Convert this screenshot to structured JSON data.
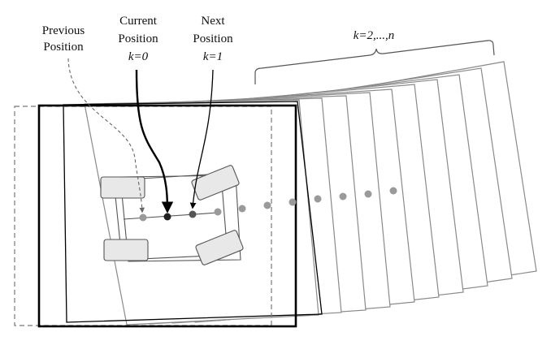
{
  "labels": {
    "previous": {
      "line1": "Previous",
      "line2": "Position"
    },
    "current": {
      "line1": "Current",
      "line2": "Position",
      "line3": "k=0"
    },
    "next": {
      "line1": "Next",
      "line2": "Position",
      "line3": "k=1"
    },
    "future": "k=2,...,n"
  },
  "colors": {
    "current_frame": "#000000",
    "future_frames": "#8a8a8a",
    "previous_frame": "#777777",
    "point_dark": "#222222",
    "point_light": "#9a9a9a",
    "wheel_fill": "#e8e8e8"
  }
}
